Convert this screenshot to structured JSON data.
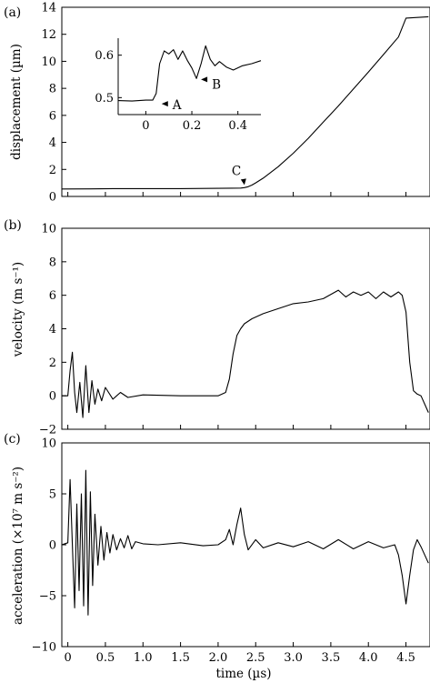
{
  "chart_data": [
    {
      "panel": "(a)",
      "type": "line",
      "title": "",
      "xlabel": "",
      "ylabel": "displacement (µm)",
      "xlim": [
        -0.08,
        4.82
      ],
      "ylim": [
        0,
        14
      ],
      "yticks": [
        0,
        2,
        4,
        6,
        8,
        10,
        12,
        14
      ],
      "series": [
        {
          "x": [
            -0.08,
            0.3,
            0.6,
            1.0,
            1.5,
            2.0,
            2.3,
            2.35,
            2.4,
            2.45,
            2.5,
            2.6,
            2.8,
            3.0,
            3.2,
            3.4,
            3.6,
            3.8,
            4.0,
            4.2,
            4.4,
            4.5,
            4.8
          ],
          "y": [
            0.55,
            0.56,
            0.58,
            0.58,
            0.58,
            0.6,
            0.62,
            0.65,
            0.72,
            0.84,
            1.0,
            1.35,
            2.2,
            3.2,
            4.3,
            5.5,
            6.7,
            7.95,
            9.2,
            10.5,
            11.8,
            13.2,
            13.3
          ]
        }
      ],
      "annotations": [
        {
          "text": "C",
          "x": 2.35,
          "y": 0.65
        }
      ],
      "inset": {
        "type": "line",
        "xlim": [
          -0.12,
          0.5
        ],
        "ylim": [
          0.46,
          0.64
        ],
        "xticks": [
          "0",
          "0.2",
          "0.4"
        ],
        "yticks": [
          "0.5",
          "0.6"
        ],
        "series": [
          {
            "x": [
              -0.12,
              -0.06,
              0.0,
              0.03,
              0.045,
              0.06,
              0.08,
              0.1,
              0.12,
              0.14,
              0.16,
              0.18,
              0.2,
              0.22,
              0.24,
              0.26,
              0.28,
              0.3,
              0.32,
              0.35,
              0.38,
              0.42,
              0.46,
              0.5
            ],
            "y": [
              0.493,
              0.492,
              0.494,
              0.494,
              0.51,
              0.58,
              0.61,
              0.603,
              0.613,
              0.59,
              0.61,
              0.588,
              0.57,
              0.545,
              0.58,
              0.622,
              0.59,
              0.575,
              0.585,
              0.572,
              0.565,
              0.575,
              0.58,
              0.587
            ]
          }
        ],
        "annotations": [
          {
            "text": "A",
            "x": 0.045,
            "y": 0.494
          },
          {
            "text": "B",
            "x": 0.22,
            "y": 0.545
          }
        ]
      }
    },
    {
      "panel": "(b)",
      "type": "line",
      "title": "",
      "xlabel": "",
      "ylabel": "velocity (m s⁻¹)",
      "xlim": [
        -0.08,
        4.82
      ],
      "ylim": [
        -2,
        10
      ],
      "yticks": [
        -2,
        0,
        2,
        4,
        6,
        8,
        10
      ],
      "series": [
        {
          "x": [
            -0.08,
            0.0,
            0.03,
            0.06,
            0.09,
            0.12,
            0.16,
            0.2,
            0.24,
            0.28,
            0.32,
            0.36,
            0.4,
            0.45,
            0.5,
            0.6,
            0.7,
            0.8,
            1.0,
            1.5,
            2.0,
            2.1,
            2.15,
            2.2,
            2.25,
            2.3,
            2.35,
            2.45,
            2.6,
            2.8,
            3.0,
            3.2,
            3.4,
            3.6,
            3.7,
            3.8,
            3.9,
            4.0,
            4.1,
            4.2,
            4.3,
            4.4,
            4.45,
            4.5,
            4.55,
            4.6,
            4.65,
            4.7,
            4.8
          ],
          "y": [
            0.0,
            0.0,
            1.5,
            2.6,
            0.2,
            -1.0,
            0.8,
            -1.3,
            1.8,
            -1.0,
            0.9,
            -0.5,
            0.4,
            -0.3,
            0.5,
            -0.2,
            0.2,
            -0.1,
            0.05,
            0.0,
            0.0,
            0.2,
            1.0,
            2.5,
            3.6,
            4.0,
            4.3,
            4.6,
            4.9,
            5.2,
            5.5,
            5.6,
            5.8,
            6.3,
            5.9,
            6.2,
            6.0,
            6.2,
            5.8,
            6.2,
            5.9,
            6.2,
            6.0,
            5.0,
            2.0,
            0.3,
            0.1,
            0.0,
            -1.0
          ]
        }
      ]
    },
    {
      "panel": "(c)",
      "type": "line",
      "title": "",
      "xlabel": "time (µs)",
      "ylabel": "acceleration (×10⁷ m s⁻²)",
      "xlim": [
        -0.08,
        4.82
      ],
      "ylim": [
        -10,
        10
      ],
      "yticks": [
        -10,
        -5,
        0,
        5,
        10
      ],
      "xticks": [
        "0",
        "0.5",
        "1.0",
        "1.5",
        "2.0",
        "2.5",
        "3.0",
        "3.5",
        "4.0",
        "4.5"
      ],
      "series": [
        {
          "x": [
            -0.08,
            0.0,
            0.03,
            0.06,
            0.09,
            0.12,
            0.15,
            0.18,
            0.21,
            0.24,
            0.27,
            0.3,
            0.33,
            0.36,
            0.4,
            0.44,
            0.48,
            0.52,
            0.56,
            0.6,
            0.65,
            0.7,
            0.75,
            0.8,
            0.85,
            0.9,
            1.0,
            1.2,
            1.5,
            1.8,
            2.0,
            2.1,
            2.15,
            2.2,
            2.25,
            2.3,
            2.35,
            2.4,
            2.5,
            2.6,
            2.8,
            3.0,
            3.2,
            3.4,
            3.6,
            3.8,
            4.0,
            4.2,
            4.35,
            4.4,
            4.45,
            4.5,
            4.55,
            4.6,
            4.65,
            4.7,
            4.8
          ],
          "y": [
            0.0,
            0.2,
            6.4,
            0.0,
            -6.2,
            4.0,
            -4.5,
            5.0,
            -6.0,
            7.3,
            -6.9,
            5.2,
            -4.0,
            3.0,
            -2.0,
            1.8,
            -1.5,
            1.2,
            -0.8,
            1.0,
            -0.5,
            0.6,
            -0.3,
            0.9,
            -0.4,
            0.3,
            0.1,
            0.0,
            0.2,
            -0.1,
            0.0,
            0.5,
            1.5,
            0.0,
            2.0,
            3.6,
            1.0,
            -0.5,
            0.5,
            -0.3,
            0.2,
            -0.2,
            0.3,
            -0.4,
            0.5,
            -0.4,
            0.3,
            -0.3,
            0.0,
            -1.0,
            -3.0,
            -5.8,
            -3.0,
            -0.5,
            0.5,
            -0.2,
            -1.8
          ]
        }
      ]
    }
  ]
}
